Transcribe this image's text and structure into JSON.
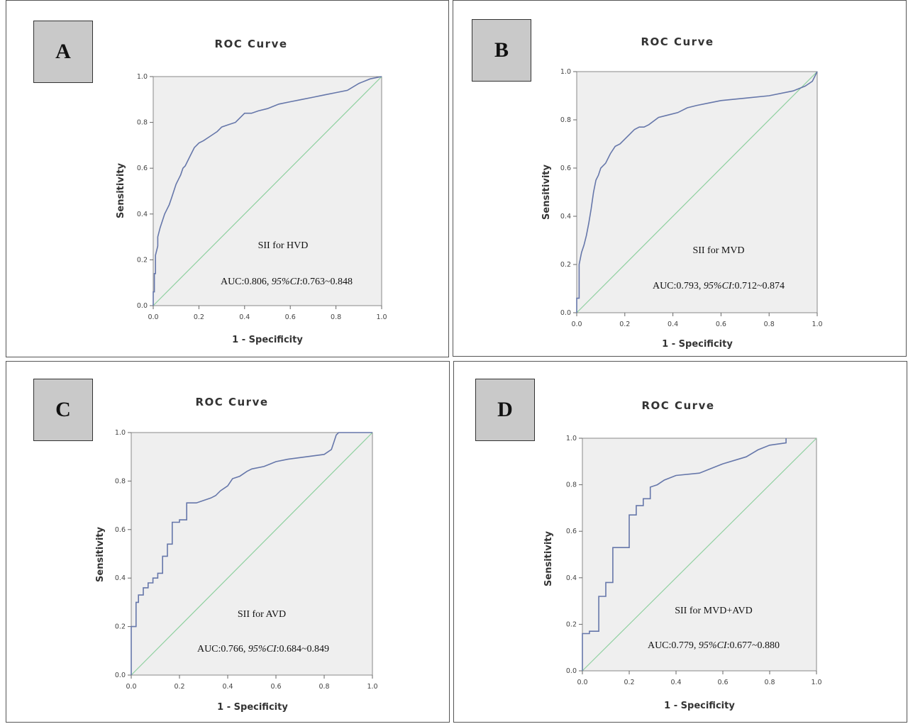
{
  "colors": {
    "roc_line": "#6677aa",
    "reference_line": "#8fd0a0",
    "plot_bg": "#efefef",
    "axis": "#666666"
  },
  "chart_data": [
    {
      "panel": "A",
      "type": "line",
      "title": "ROC Curve",
      "xlabel": "1 - Specificity",
      "ylabel": "Sensitivity",
      "xlim": [
        0,
        1
      ],
      "ylim": [
        0,
        1
      ],
      "x_ticks": [
        "0.0",
        "0.2",
        "0.4",
        "0.6",
        "0.8",
        "1.0"
      ],
      "y_ticks": [
        "0.0",
        "0.2",
        "0.4",
        "0.6",
        "0.8",
        "1.0"
      ],
      "annotation": "SII for HVD",
      "auc": {
        "prefix": "AUC:0.806, ",
        "ci_label": "95%CI",
        "ci_value": ":0.763~0.848"
      },
      "series": [
        {
          "x": [
            0,
            0,
            0.005,
            0.005,
            0.01,
            0.01,
            0.02,
            0.02,
            0.03,
            0.04,
            0.05,
            0.06,
            0.07,
            0.08,
            0.09,
            0.1,
            0.11,
            0.12,
            0.13,
            0.14,
            0.15,
            0.16,
            0.17,
            0.18,
            0.19,
            0.2,
            0.22,
            0.25,
            0.28,
            0.3,
            0.33,
            0.36,
            0.38,
            0.4,
            0.43,
            0.46,
            0.5,
            0.55,
            0.6,
            0.65,
            0.7,
            0.75,
            0.8,
            0.85,
            0.9,
            0.95,
            1.0
          ],
          "y": [
            0,
            0.06,
            0.06,
            0.14,
            0.14,
            0.22,
            0.26,
            0.3,
            0.34,
            0.37,
            0.4,
            0.42,
            0.44,
            0.47,
            0.5,
            0.53,
            0.55,
            0.57,
            0.6,
            0.61,
            0.63,
            0.65,
            0.67,
            0.69,
            0.7,
            0.71,
            0.72,
            0.74,
            0.76,
            0.78,
            0.79,
            0.8,
            0.82,
            0.84,
            0.84,
            0.85,
            0.86,
            0.88,
            0.89,
            0.9,
            0.91,
            0.92,
            0.93,
            0.94,
            0.97,
            0.99,
            1.0
          ]
        },
        {
          "x": [
            0,
            1
          ],
          "y": [
            0,
            1
          ]
        }
      ]
    },
    {
      "panel": "B",
      "type": "line",
      "title": "ROC Curve",
      "xlabel": "1 - Specificity",
      "ylabel": "Sensitivity",
      "xlim": [
        0,
        1
      ],
      "ylim": [
        0,
        1
      ],
      "x_ticks": [
        "0.0",
        "0.2",
        "0.4",
        "0.6",
        "0.8",
        "1.0"
      ],
      "y_ticks": [
        "0.0",
        "0.2",
        "0.4",
        "0.6",
        "0.8",
        "1.0"
      ],
      "annotation": "SII for MVD",
      "auc": {
        "prefix": "AUC:0.793, ",
        "ci_label": "95%CI",
        "ci_value": ":0.712~0.874"
      },
      "series": [
        {
          "x": [
            0,
            0,
            0.01,
            0.01,
            0.02,
            0.03,
            0.04,
            0.05,
            0.06,
            0.07,
            0.08,
            0.09,
            0.1,
            0.12,
            0.14,
            0.16,
            0.18,
            0.2,
            0.22,
            0.24,
            0.26,
            0.28,
            0.3,
            0.34,
            0.38,
            0.42,
            0.46,
            0.5,
            0.55,
            0.6,
            0.7,
            0.8,
            0.9,
            0.95,
            0.98,
            1.0
          ],
          "y": [
            0,
            0.06,
            0.06,
            0.2,
            0.25,
            0.28,
            0.32,
            0.37,
            0.43,
            0.5,
            0.55,
            0.57,
            0.6,
            0.62,
            0.66,
            0.69,
            0.7,
            0.72,
            0.74,
            0.76,
            0.77,
            0.77,
            0.78,
            0.81,
            0.82,
            0.83,
            0.85,
            0.86,
            0.87,
            0.88,
            0.89,
            0.9,
            0.92,
            0.94,
            0.96,
            1.0
          ]
        },
        {
          "x": [
            0,
            1
          ],
          "y": [
            0,
            1
          ]
        }
      ]
    },
    {
      "panel": "C",
      "type": "line",
      "title": "ROC Curve",
      "xlabel": "1 - Specificity",
      "ylabel": "Sensitivity",
      "xlim": [
        0,
        1
      ],
      "ylim": [
        0,
        1
      ],
      "x_ticks": [
        "0.0",
        "0.2",
        "0.4",
        "0.6",
        "0.8",
        "1.0"
      ],
      "y_ticks": [
        "0.0",
        "0.2",
        "0.4",
        "0.6",
        "0.8",
        "1.0"
      ],
      "annotation": "SII for AVD",
      "auc": {
        "prefix": "AUC:0.766, ",
        "ci_label": "95%CI",
        "ci_value": ":0.684~0.849"
      },
      "series": [
        {
          "x": [
            0,
            0,
            0.02,
            0.02,
            0.03,
            0.03,
            0.05,
            0.05,
            0.07,
            0.07,
            0.09,
            0.09,
            0.11,
            0.11,
            0.13,
            0.13,
            0.15,
            0.15,
            0.17,
            0.17,
            0.2,
            0.2,
            0.23,
            0.23,
            0.27,
            0.33,
            0.35,
            0.37,
            0.4,
            0.42,
            0.45,
            0.48,
            0.5,
            0.55,
            0.6,
            0.65,
            0.8,
            0.83,
            0.84,
            0.85,
            0.86,
            1.0
          ],
          "y": [
            0,
            0.2,
            0.2,
            0.3,
            0.3,
            0.33,
            0.33,
            0.36,
            0.36,
            0.38,
            0.38,
            0.4,
            0.4,
            0.42,
            0.42,
            0.49,
            0.49,
            0.54,
            0.54,
            0.63,
            0.63,
            0.64,
            0.64,
            0.71,
            0.71,
            0.73,
            0.74,
            0.76,
            0.78,
            0.81,
            0.82,
            0.84,
            0.85,
            0.86,
            0.88,
            0.89,
            0.91,
            0.93,
            0.96,
            0.99,
            1.0,
            1.0
          ]
        },
        {
          "x": [
            0,
            1
          ],
          "y": [
            0,
            1
          ]
        }
      ]
    },
    {
      "panel": "D",
      "type": "line",
      "title": "ROC Curve",
      "xlabel": "1 - Specificity",
      "ylabel": "Sensitivity",
      "xlim": [
        0,
        1
      ],
      "ylim": [
        0,
        1
      ],
      "x_ticks": [
        "0.0",
        "0.2",
        "0.4",
        "0.6",
        "0.8",
        "1.0"
      ],
      "y_ticks": [
        "0.0",
        "0.2",
        "0.4",
        "0.6",
        "0.8",
        "1.0"
      ],
      "annotation": "SII for MVD+AVD",
      "auc": {
        "prefix": "AUC:0.779, ",
        "ci_label": "95%CI",
        "ci_value": ":0.677~0.880"
      },
      "series": [
        {
          "x": [
            0,
            0,
            0.03,
            0.03,
            0.07,
            0.07,
            0.1,
            0.1,
            0.13,
            0.13,
            0.2,
            0.2,
            0.23,
            0.23,
            0.26,
            0.26,
            0.29,
            0.29,
            0.32,
            0.35,
            0.4,
            0.5,
            0.55,
            0.6,
            0.7,
            0.75,
            0.8,
            0.87,
            0.87
          ],
          "y": [
            0,
            0.16,
            0.16,
            0.17,
            0.17,
            0.32,
            0.32,
            0.38,
            0.38,
            0.53,
            0.53,
            0.67,
            0.67,
            0.71,
            0.71,
            0.74,
            0.74,
            0.79,
            0.8,
            0.82,
            0.84,
            0.85,
            0.87,
            0.89,
            0.92,
            0.95,
            0.97,
            0.98,
            1.0
          ]
        },
        {
          "x": [
            0,
            1
          ],
          "y": [
            0,
            1
          ]
        }
      ]
    }
  ]
}
